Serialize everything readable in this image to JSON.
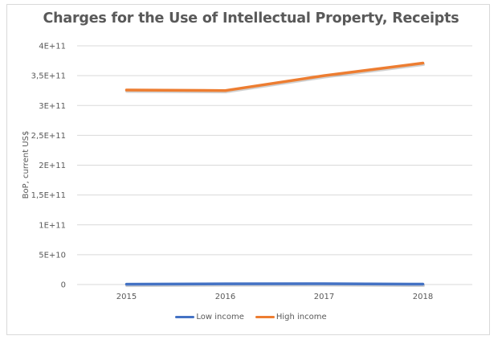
{
  "chart_data": {
    "type": "line",
    "title": "Charges for the Use of Intellectual Property, Receipts",
    "xlabel": "",
    "ylabel": "BoP, current US$",
    "categories": [
      "2015",
      "2016",
      "2017",
      "2018"
    ],
    "ylim": [
      0,
      400000000000
    ],
    "yticks": [
      0,
      50000000000,
      100000000000,
      150000000000,
      200000000000,
      250000000000,
      300000000000,
      350000000000,
      400000000000
    ],
    "ytick_labels": [
      "0",
      "5E+10",
      "1E+11",
      "1,5E+11",
      "2E+11",
      "2,5E+11",
      "3E+11",
      "3,5E+11",
      "4E+11"
    ],
    "grid": true,
    "legend_position": "bottom",
    "series": [
      {
        "name": "Low income",
        "color": "#4472c4",
        "values": [
          500000000,
          1200000000,
          1300000000,
          600000000
        ]
      },
      {
        "name": "High income",
        "color": "#ed7d31",
        "values": [
          326000000000,
          325000000000,
          350000000000,
          371000000000
        ]
      }
    ]
  }
}
